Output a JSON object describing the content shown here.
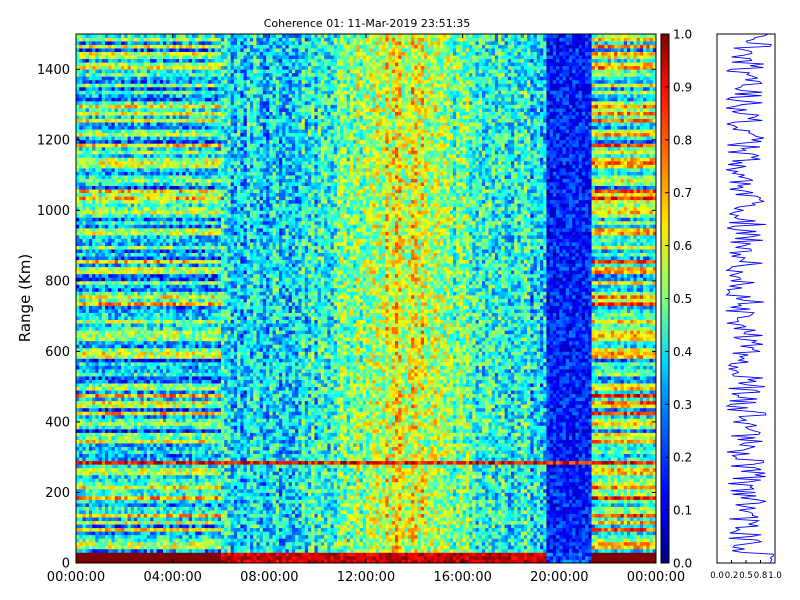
{
  "chart_data": [
    {
      "type": "heatmap",
      "title": "Coherence 01: 11-Mar-2019 23:51:35",
      "xlabel": "",
      "ylabel": "Range (Km)",
      "x_ticks": [
        "00:00:00",
        "04:00:00",
        "08:00:00",
        "12:00:00",
        "16:00:00",
        "20:00:00",
        "00:00:00"
      ],
      "x_range_hours": [
        0,
        24
      ],
      "y_ticks": [
        0,
        200,
        400,
        600,
        800,
        1000,
        1200,
        1400
      ],
      "ylim": [
        0,
        1500
      ],
      "colormap": "jet",
      "grid": false,
      "features": {
        "bottom_saturated_range_km": [
          0,
          30
        ],
        "strong_band_range_km": [
          282,
          290
        ],
        "low_coherence_gap_hours": [
          19.5,
          21.4
        ],
        "wide_gap_hours": [
          21.4,
          24
        ],
        "early_period_hours": [
          0,
          6
        ]
      }
    },
    {
      "type": "colorbar",
      "range": [
        0.0,
        1.0
      ],
      "ticks": [
        "0.0",
        "0.1",
        "0.2",
        "0.3",
        "0.4",
        "0.5",
        "0.6",
        "0.7",
        "0.8",
        "0.9",
        "1.0"
      ],
      "colormap": "jet"
    },
    {
      "type": "line",
      "x_ticks": [
        "0.0",
        "0.2",
        "0.5",
        "0.8",
        "1.0"
      ],
      "xlim": [
        0,
        1
      ],
      "ylim": [
        0,
        1500
      ],
      "series_color": "#0000ff",
      "description_value_range": [
        0.05,
        0.95
      ]
    }
  ]
}
